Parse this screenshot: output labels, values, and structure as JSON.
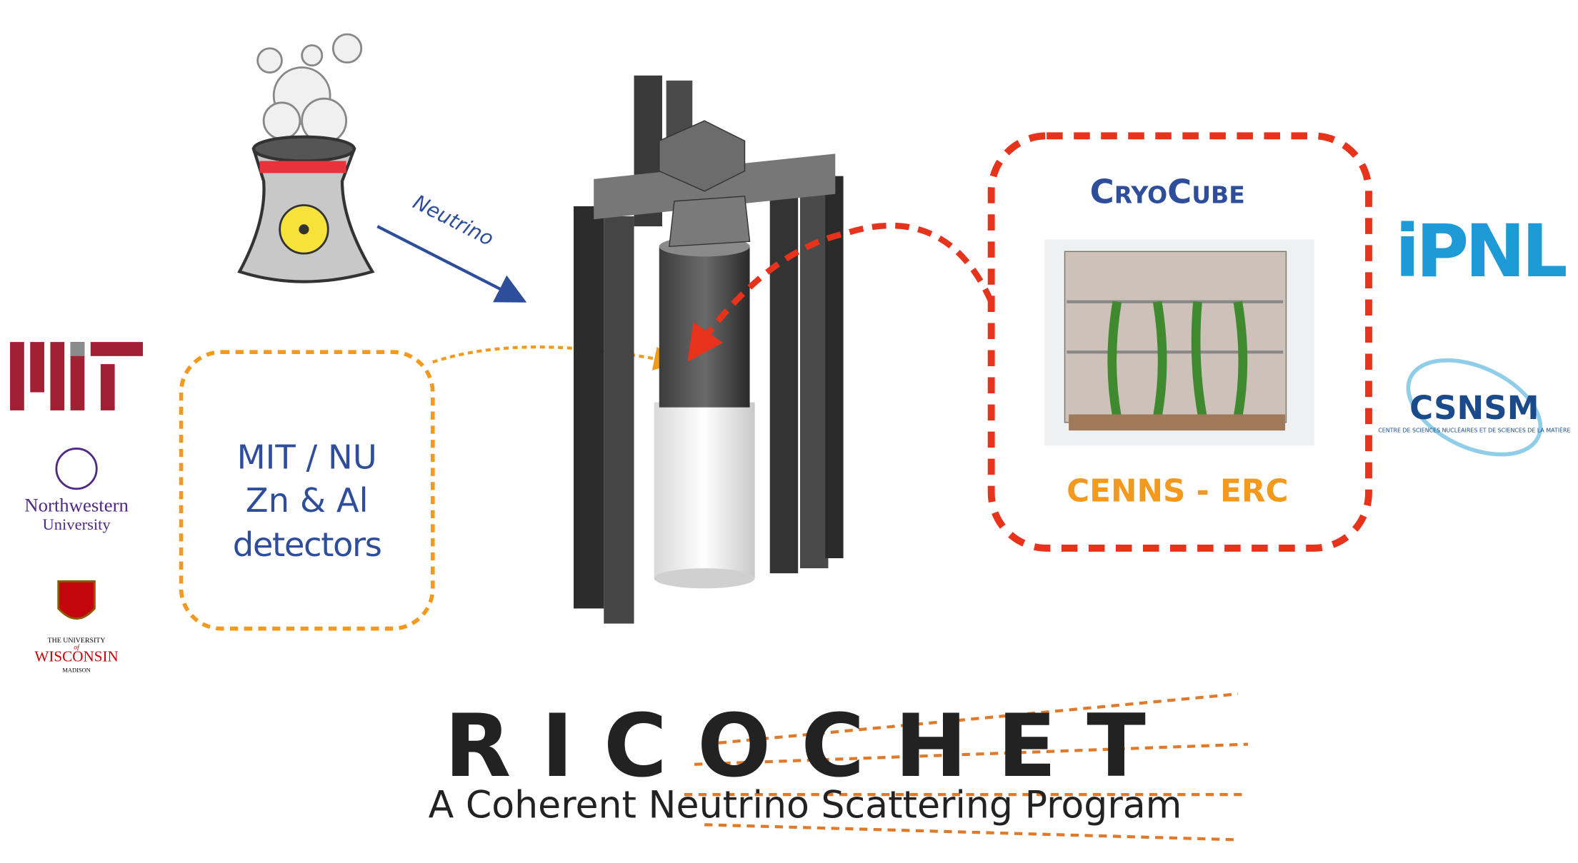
{
  "reactor": {
    "label": "Neutrino"
  },
  "left_box": {
    "lines": [
      "MIT / NU",
      "Zn & Al",
      "detectors"
    ]
  },
  "right_box": {
    "title": "CryoCube",
    "subtitle": "CENNS - ERC"
  },
  "logos": {
    "northwestern": [
      "Northwestern",
      "University"
    ],
    "wisconsin": [
      "THE UNIVERSITY",
      "of",
      "WISCONSIN",
      "MADISON"
    ],
    "ipnl": "iPNL",
    "csnsm": {
      "name": "CSNSM",
      "full": "CENTRE DE SCIENCES NUCLÉAIRES ET DE SCIENCES DE LA MATIÈRE"
    }
  },
  "footer": {
    "title": "RICOCHET",
    "subtitle": "A Coherent Neutrino Scattering Program"
  }
}
